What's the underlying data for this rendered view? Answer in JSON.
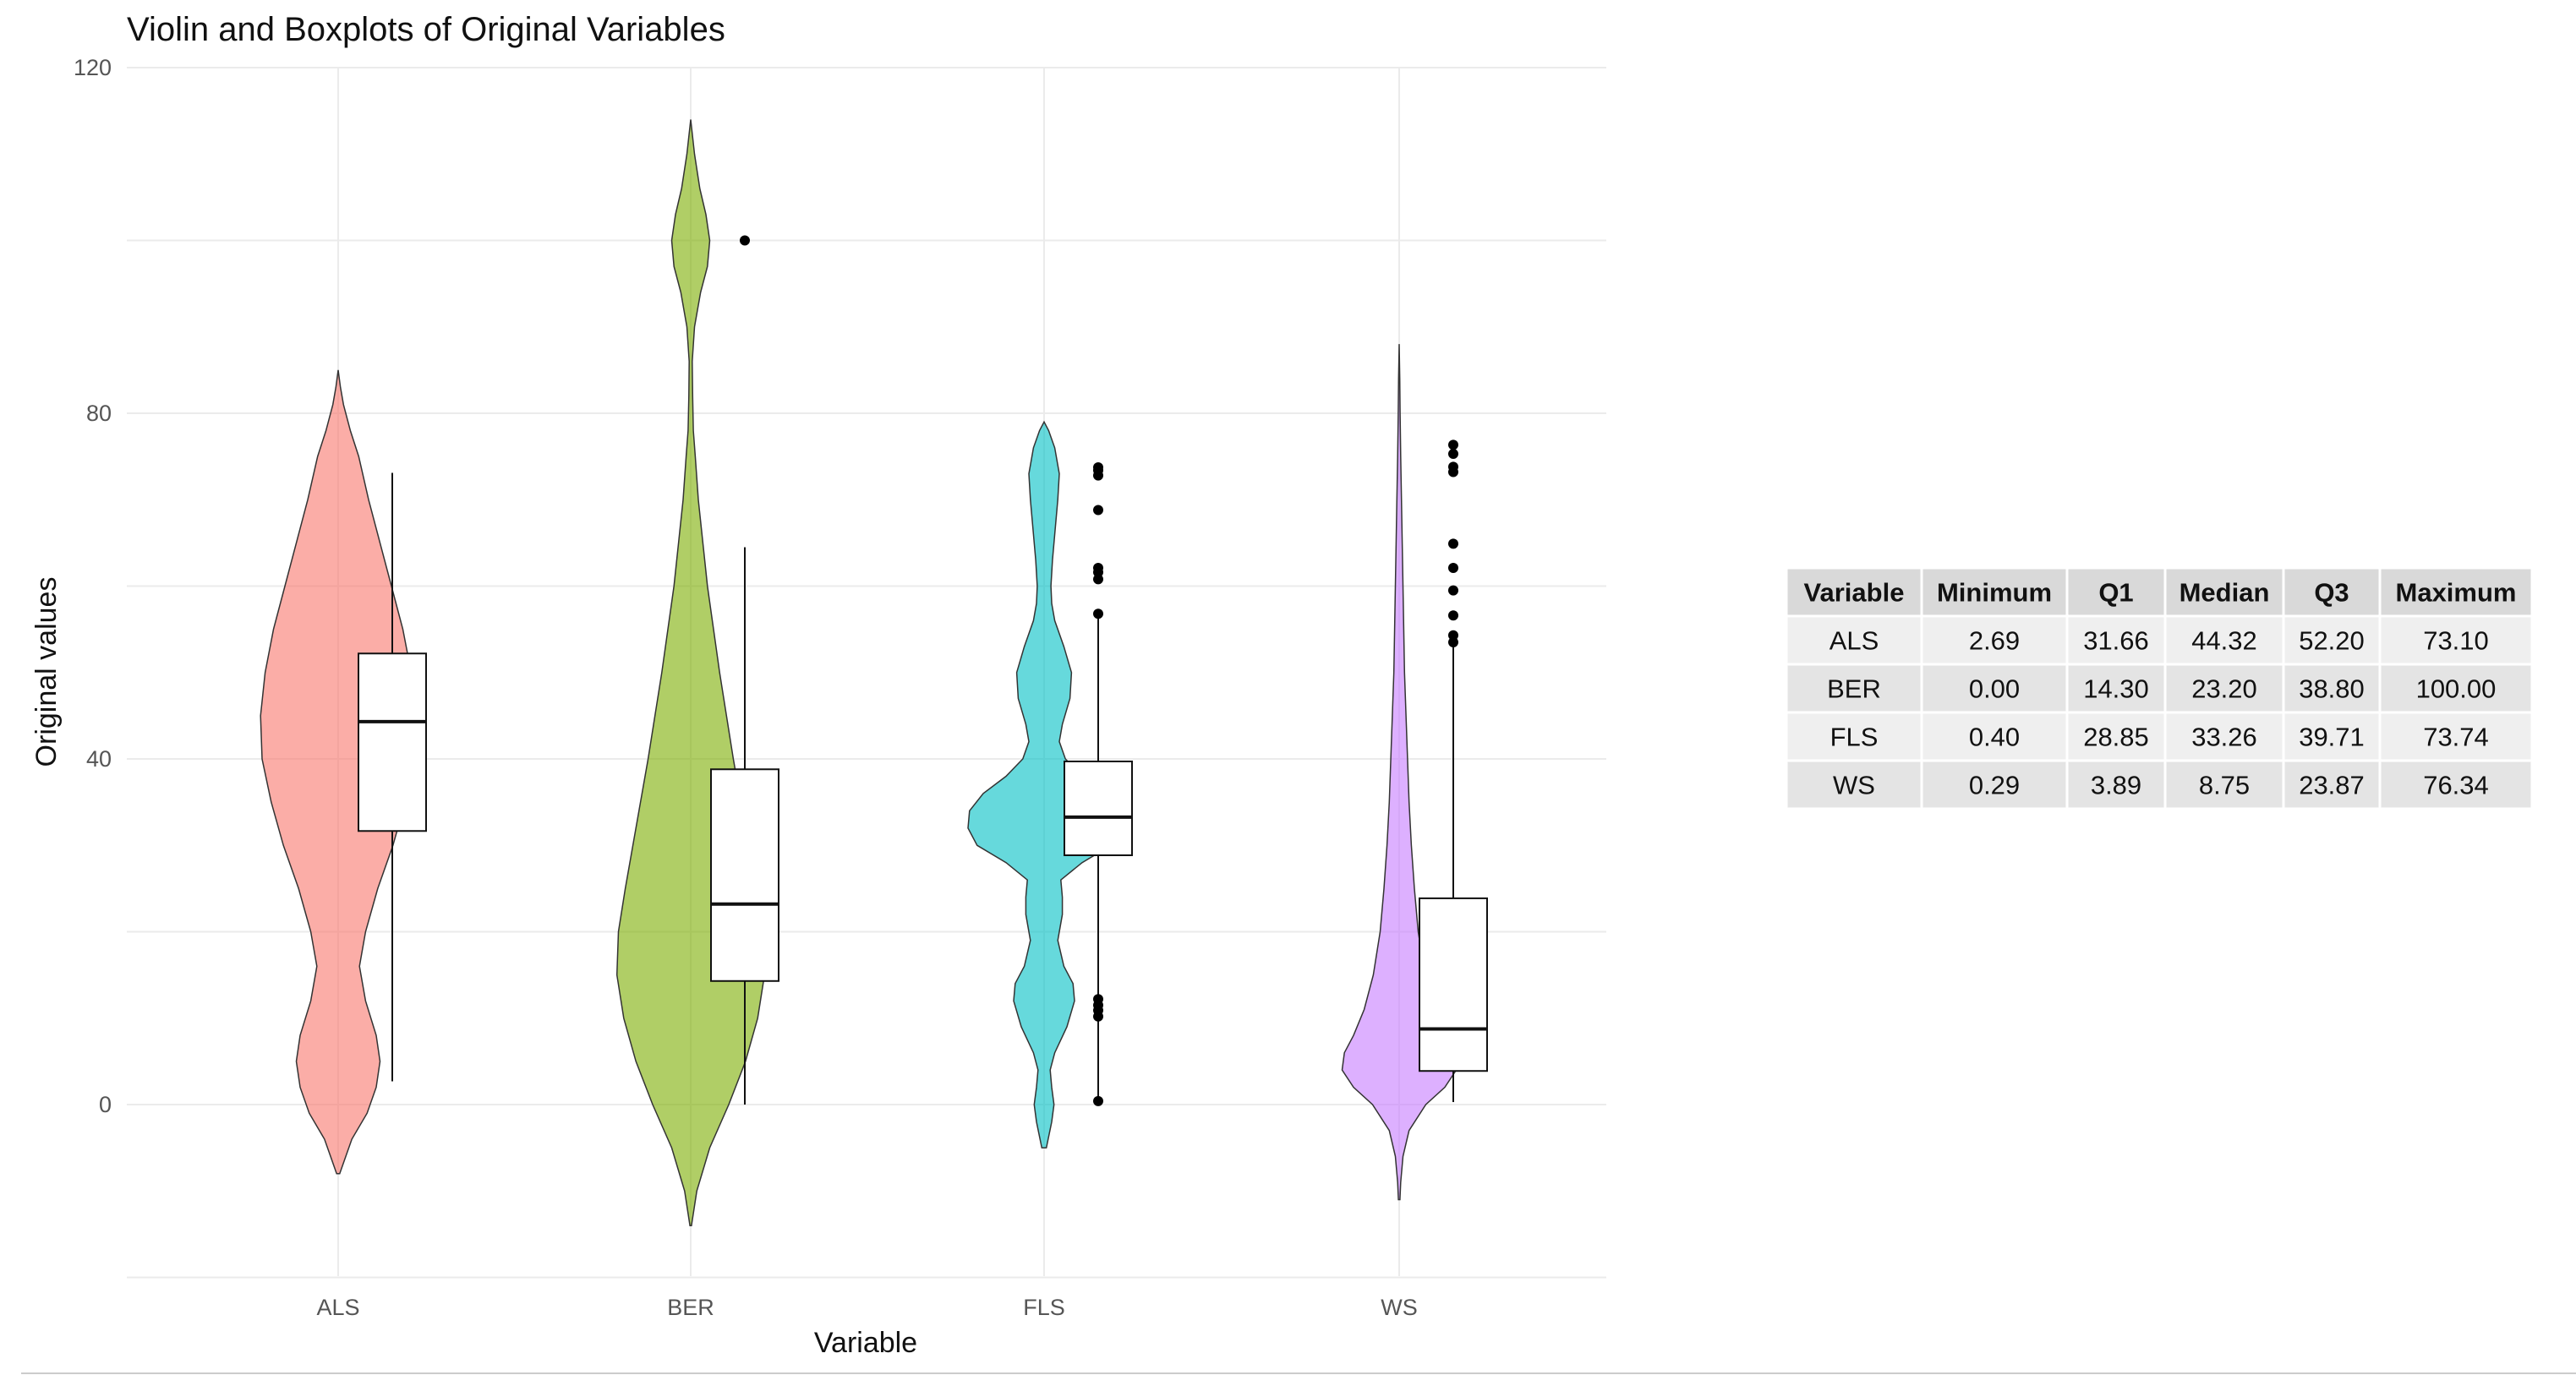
{
  "chart_data": {
    "type": "violin",
    "title": "Violin and Boxplots of Original Variables",
    "xlabel": "Variable",
    "ylabel": "Original values",
    "ylim": [
      -20,
      120
    ],
    "yticks": [
      0,
      40,
      80,
      120
    ],
    "grid": true,
    "categories": [
      "ALS",
      "BER",
      "FLS",
      "WS"
    ],
    "colors": [
      "#F8766D",
      "#7CAE00",
      "#00BFC4",
      "#C77CFF"
    ],
    "box_stats": [
      {
        "min": 2.69,
        "q1": 31.66,
        "median": 44.32,
        "q3": 52.2,
        "max": 73.1,
        "outliers": []
      },
      {
        "min": 0.0,
        "q1": 14.3,
        "median": 23.2,
        "q3": 38.8,
        "max": 64.5,
        "outliers": [
          100.0
        ]
      },
      {
        "min": 0.4,
        "q1": 28.85,
        "median": 33.26,
        "q3": 39.71,
        "max": 56.5,
        "outliers": [
          0.4,
          10.2,
          10.9,
          11.5,
          12.2,
          56.8,
          60.8,
          61.6,
          62.1,
          68.8,
          72.8,
          73.4,
          73.74
        ]
      },
      {
        "min": 0.29,
        "q1": 3.89,
        "median": 8.75,
        "q3": 23.87,
        "max": 53.5,
        "outliers": [
          53.5,
          54.3,
          56.6,
          59.5,
          62.1,
          64.9,
          73.2,
          73.8,
          75.3,
          76.34
        ]
      }
    ],
    "violins": [
      {
        "ymin": -8,
        "ymax": 85,
        "profile": [
          [
            -8,
            0.02
          ],
          [
            -4,
            0.18
          ],
          [
            -1,
            0.38
          ],
          [
            2,
            0.5
          ],
          [
            5,
            0.55
          ],
          [
            8,
            0.5
          ],
          [
            12,
            0.36
          ],
          [
            16,
            0.28
          ],
          [
            20,
            0.36
          ],
          [
            25,
            0.52
          ],
          [
            30,
            0.72
          ],
          [
            35,
            0.88
          ],
          [
            40,
            1.0
          ],
          [
            45,
            1.02
          ],
          [
            50,
            0.96
          ],
          [
            55,
            0.85
          ],
          [
            60,
            0.7
          ],
          [
            65,
            0.55
          ],
          [
            70,
            0.4
          ],
          [
            75,
            0.27
          ],
          [
            78,
            0.16
          ],
          [
            81,
            0.07
          ],
          [
            83,
            0.03
          ],
          [
            85,
            0.0
          ]
        ]
      },
      {
        "ymin": -14,
        "ymax": 114,
        "profile": [
          [
            -14,
            0.01
          ],
          [
            -10,
            0.08
          ],
          [
            -5,
            0.25
          ],
          [
            0,
            0.5
          ],
          [
            5,
            0.72
          ],
          [
            10,
            0.88
          ],
          [
            15,
            0.97
          ],
          [
            20,
            0.95
          ],
          [
            25,
            0.86
          ],
          [
            30,
            0.76
          ],
          [
            35,
            0.66
          ],
          [
            40,
            0.56
          ],
          [
            45,
            0.47
          ],
          [
            50,
            0.38
          ],
          [
            55,
            0.3
          ],
          [
            60,
            0.22
          ],
          [
            65,
            0.16
          ],
          [
            70,
            0.1
          ],
          [
            75,
            0.06
          ],
          [
            78,
            0.035
          ],
          [
            82,
            0.025
          ],
          [
            86,
            0.02
          ],
          [
            90,
            0.05
          ],
          [
            94,
            0.13
          ],
          [
            97,
            0.22
          ],
          [
            100,
            0.25
          ],
          [
            103,
            0.2
          ],
          [
            106,
            0.12
          ],
          [
            110,
            0.05
          ],
          [
            114,
            0.0
          ]
        ]
      },
      {
        "ymin": -5,
        "ymax": 79,
        "profile": [
          [
            -5,
            0.03
          ],
          [
            -2,
            0.1
          ],
          [
            0,
            0.13
          ],
          [
            2,
            0.1
          ],
          [
            4,
            0.08
          ],
          [
            6,
            0.14
          ],
          [
            9,
            0.3
          ],
          [
            12,
            0.4
          ],
          [
            14,
            0.38
          ],
          [
            16,
            0.26
          ],
          [
            19,
            0.18
          ],
          [
            22,
            0.24
          ],
          [
            24,
            0.24
          ],
          [
            26,
            0.22
          ],
          [
            28,
            0.5
          ],
          [
            30,
            0.88
          ],
          [
            32,
            1.0
          ],
          [
            34,
            0.98
          ],
          [
            36,
            0.8
          ],
          [
            38,
            0.5
          ],
          [
            40,
            0.28
          ],
          [
            42,
            0.2
          ],
          [
            44,
            0.24
          ],
          [
            47,
            0.34
          ],
          [
            50,
            0.36
          ],
          [
            53,
            0.26
          ],
          [
            56,
            0.14
          ],
          [
            58,
            0.1
          ],
          [
            60,
            0.09
          ],
          [
            63,
            0.11
          ],
          [
            66,
            0.14
          ],
          [
            70,
            0.18
          ],
          [
            73,
            0.2
          ],
          [
            76,
            0.14
          ],
          [
            78,
            0.06
          ],
          [
            79,
            0.0
          ]
        ]
      },
      {
        "ymin": -11,
        "ymax": 88,
        "profile": [
          [
            -11,
            0.01
          ],
          [
            -9,
            0.02
          ],
          [
            -6,
            0.05
          ],
          [
            -3,
            0.13
          ],
          [
            0,
            0.35
          ],
          [
            2,
            0.6
          ],
          [
            4,
            0.75
          ],
          [
            6,
            0.72
          ],
          [
            8,
            0.6
          ],
          [
            11,
            0.46
          ],
          [
            15,
            0.34
          ],
          [
            20,
            0.25
          ],
          [
            25,
            0.2
          ],
          [
            30,
            0.16
          ],
          [
            35,
            0.13
          ],
          [
            40,
            0.11
          ],
          [
            45,
            0.09
          ],
          [
            50,
            0.07
          ],
          [
            55,
            0.06
          ],
          [
            60,
            0.05
          ],
          [
            65,
            0.04
          ],
          [
            70,
            0.03
          ],
          [
            75,
            0.02
          ],
          [
            80,
            0.012
          ],
          [
            84,
            0.008
          ],
          [
            88,
            0.0
          ]
        ]
      }
    ]
  },
  "summary_table": {
    "headers": [
      "Variable",
      "Minimum",
      "Q1",
      "Median",
      "Q3",
      "Maximum"
    ],
    "rows": [
      [
        "ALS",
        "2.69",
        "31.66",
        "44.32",
        "52.20",
        "73.10"
      ],
      [
        "BER",
        "0.00",
        "14.30",
        "23.20",
        "38.80",
        "100.00"
      ],
      [
        "FLS",
        "0.40",
        "28.85",
        "33.26",
        "39.71",
        "73.74"
      ],
      [
        "WS",
        "0.29",
        "3.89",
        "8.75",
        "23.87",
        "76.34"
      ]
    ],
    "header_bg": "#D9D9D9",
    "row_bgs": [
      "#EFEFEF",
      "#E4E4E4"
    ]
  }
}
